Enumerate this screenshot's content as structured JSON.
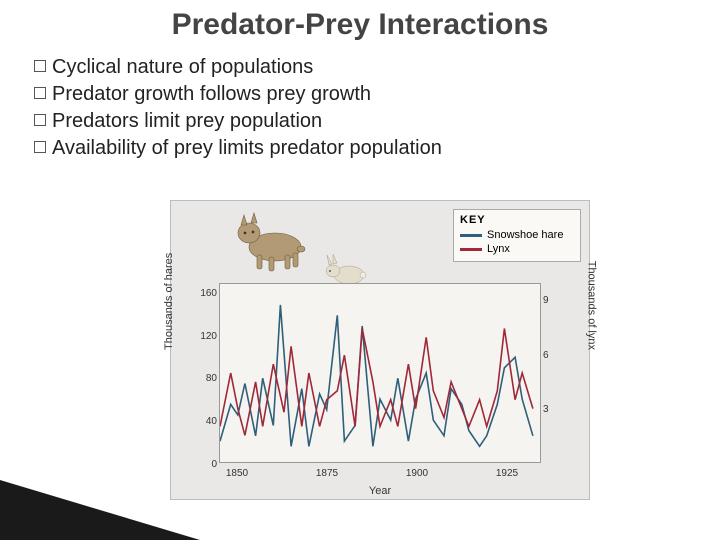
{
  "title": "Predator-Prey Interactions",
  "bullets": [
    "Cyclical nature of populations",
    "Predator growth follows prey growth",
    "Predators limit prey population",
    "Availability of prey limits predator population"
  ],
  "chart": {
    "type": "line",
    "background_color": "#e9e8e6",
    "plot_background": "#f5f4f0",
    "legend": {
      "title": "KEY",
      "items": [
        {
          "name": "Snowshoe hare",
          "color": "#2f5f7a"
        },
        {
          "name": "Lynx",
          "color": "#a02838"
        }
      ]
    },
    "x_axis": {
      "label": "Year",
      "ticks": [
        1850,
        1875,
        1900,
        1925
      ],
      "min": 1845,
      "max": 1935
    },
    "y_axis_left": {
      "label": "Thousands of hares",
      "ticks": [
        0,
        40,
        80,
        120,
        160
      ],
      "min": 0,
      "max": 170
    },
    "y_axis_right": {
      "label": "Thousands of lynx",
      "ticks": [
        3,
        6,
        9
      ],
      "min": 0,
      "max": 10
    },
    "series": [
      {
        "name": "hare",
        "color": "#2f5f7a",
        "width": 1.6,
        "data": [
          [
            1845,
            20
          ],
          [
            1848,
            55
          ],
          [
            1850,
            45
          ],
          [
            1852,
            75
          ],
          [
            1855,
            25
          ],
          [
            1857,
            80
          ],
          [
            1860,
            35
          ],
          [
            1862,
            150
          ],
          [
            1865,
            15
          ],
          [
            1868,
            70
          ],
          [
            1870,
            15
          ],
          [
            1873,
            65
          ],
          [
            1875,
            50
          ],
          [
            1878,
            140
          ],
          [
            1880,
            20
          ],
          [
            1883,
            35
          ],
          [
            1885,
            130
          ],
          [
            1888,
            15
          ],
          [
            1890,
            60
          ],
          [
            1893,
            40
          ],
          [
            1895,
            80
          ],
          [
            1898,
            20
          ],
          [
            1900,
            60
          ],
          [
            1903,
            85
          ],
          [
            1905,
            40
          ],
          [
            1908,
            25
          ],
          [
            1910,
            70
          ],
          [
            1913,
            55
          ],
          [
            1915,
            30
          ],
          [
            1918,
            15
          ],
          [
            1920,
            25
          ],
          [
            1923,
            55
          ],
          [
            1925,
            90
          ],
          [
            1928,
            100
          ],
          [
            1930,
            60
          ],
          [
            1933,
            25
          ]
        ]
      },
      {
        "name": "lynx",
        "color": "#a02838",
        "width": 1.6,
        "data": [
          [
            1845,
            2
          ],
          [
            1848,
            5
          ],
          [
            1850,
            3
          ],
          [
            1852,
            1.5
          ],
          [
            1855,
            4.5
          ],
          [
            1857,
            2
          ],
          [
            1860,
            5.5
          ],
          [
            1863,
            2.8
          ],
          [
            1865,
            6.5
          ],
          [
            1868,
            2
          ],
          [
            1870,
            5
          ],
          [
            1873,
            2
          ],
          [
            1875,
            3.5
          ],
          [
            1878,
            4
          ],
          [
            1880,
            6
          ],
          [
            1883,
            2
          ],
          [
            1885,
            7.5
          ],
          [
            1888,
            4.5
          ],
          [
            1890,
            2
          ],
          [
            1893,
            3.5
          ],
          [
            1895,
            2
          ],
          [
            1898,
            5.5
          ],
          [
            1900,
            3
          ],
          [
            1903,
            7
          ],
          [
            1905,
            4
          ],
          [
            1908,
            2.5
          ],
          [
            1910,
            4.5
          ],
          [
            1913,
            3
          ],
          [
            1915,
            2
          ],
          [
            1918,
            3.5
          ],
          [
            1920,
            2
          ],
          [
            1923,
            4
          ],
          [
            1925,
            7.5
          ],
          [
            1928,
            3.5
          ],
          [
            1930,
            5
          ],
          [
            1933,
            3
          ]
        ]
      }
    ],
    "illustrations": {
      "lynx_color": "#b8a078",
      "hare_color": "#d8d0c0"
    }
  }
}
